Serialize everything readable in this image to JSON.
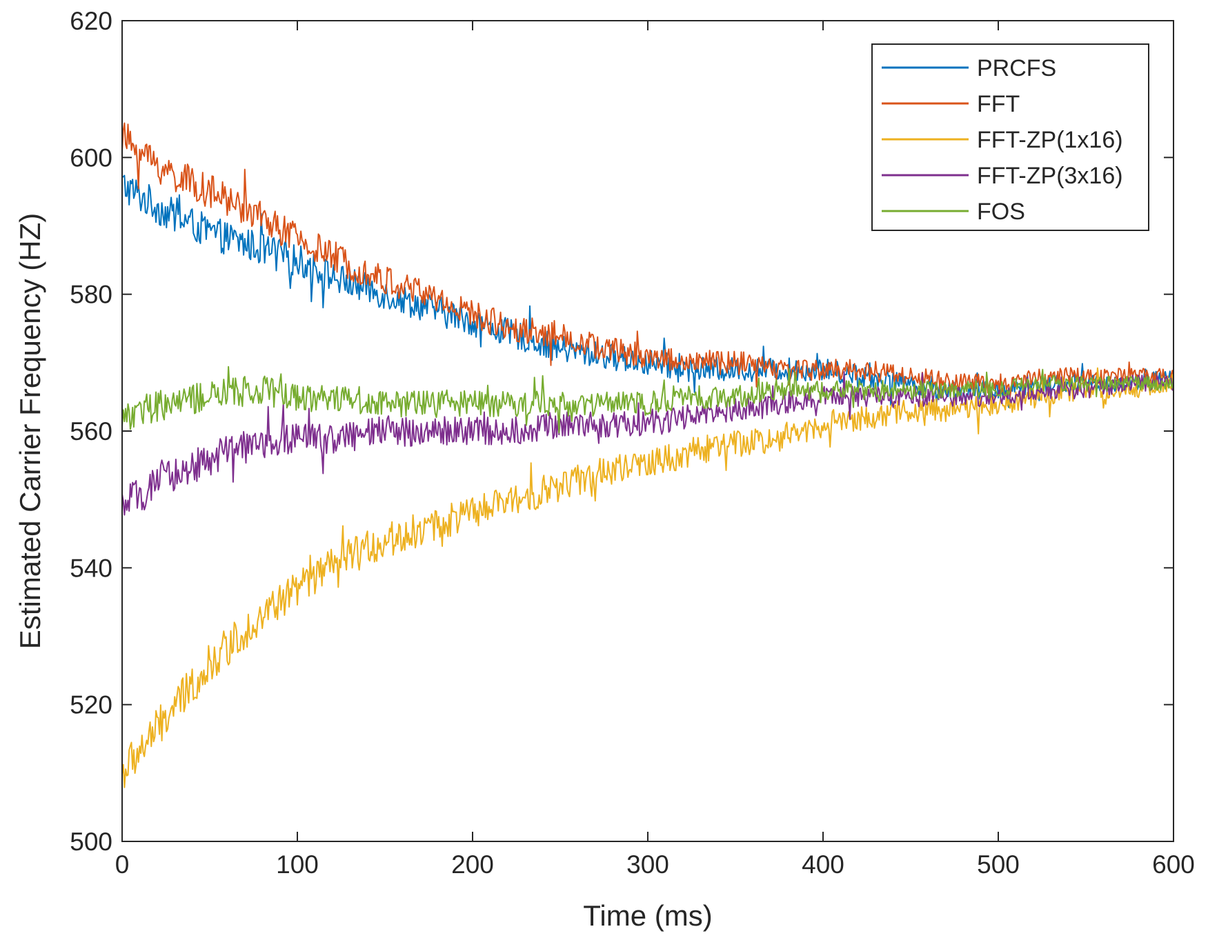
{
  "chart_data": {
    "type": "line",
    "title": "",
    "xlabel": "Time (ms)",
    "ylabel": "Estimated Carrier Frequency (HZ)",
    "xlim": [
      0,
      600
    ],
    "ylim": [
      500,
      620
    ],
    "xticks": [
      0,
      100,
      200,
      300,
      400,
      500,
      600
    ],
    "yticks": [
      500,
      520,
      540,
      560,
      580,
      600,
      620
    ],
    "xtick_labels": [
      "0",
      "100",
      "200",
      "300",
      "400",
      "500",
      "600"
    ],
    "ytick_labels": [
      "500",
      "520",
      "540",
      "560",
      "580",
      "600",
      "620"
    ],
    "grid": false,
    "legend_position": "top-right",
    "x": [
      0,
      25,
      50,
      75,
      100,
      125,
      150,
      175,
      200,
      225,
      250,
      275,
      300,
      325,
      350,
      375,
      400,
      425,
      450,
      475,
      500,
      525,
      550,
      575,
      600
    ],
    "series": [
      {
        "name": "PRCFS",
        "color": "#0072BD",
        "values": [
          596,
          592,
          589,
          587,
          585,
          582,
          580,
          578,
          576,
          574,
          572,
          571,
          570,
          569,
          569,
          569,
          569,
          568,
          567,
          566,
          566,
          567,
          567,
          567,
          568
        ],
        "noise": 2.6
      },
      {
        "name": "FFT",
        "color": "#D95319",
        "values": [
          603,
          598,
          595,
          592,
          588,
          585,
          582,
          580,
          577,
          575,
          574,
          572,
          571,
          570,
          570,
          569,
          569,
          569,
          568,
          567,
          567,
          568,
          568,
          568,
          568
        ],
        "noise": 2.6
      },
      {
        "name": "FFT-ZP(1x16)",
        "color": "#EDB120",
        "values": [
          510,
          518,
          526,
          532,
          537,
          541,
          544,
          546,
          548,
          550,
          552,
          554,
          555,
          557,
          558,
          559,
          561,
          562,
          563,
          563,
          564,
          565,
          566,
          566,
          567
        ],
        "noise": 3.0
      },
      {
        "name": "FFT-ZP(3x16)",
        "color": "#7E2F8E",
        "values": [
          549,
          553,
          556,
          558,
          559,
          559,
          560,
          560,
          560,
          560,
          561,
          561,
          561,
          562,
          563,
          564,
          565,
          565,
          565,
          565,
          565,
          566,
          566,
          567,
          567
        ],
        "noise": 2.6
      },
      {
        "name": "FOS",
        "color": "#77AC30",
        "values": [
          562,
          564,
          565,
          566,
          565,
          565,
          564,
          564,
          564,
          564,
          564,
          564,
          564,
          565,
          565,
          566,
          566,
          566,
          566,
          566,
          566,
          567,
          567,
          567,
          567
        ],
        "noise": 2.4
      }
    ]
  }
}
